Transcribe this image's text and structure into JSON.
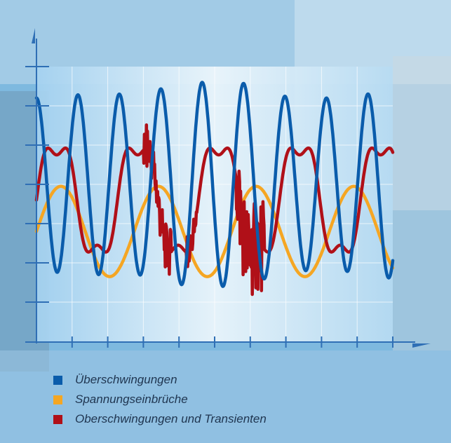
{
  "chart_data": {
    "type": "line",
    "title": "",
    "xlabel": "",
    "ylabel": "",
    "grid": true,
    "axis_ticks_x": 10,
    "axis_ticks_y": 7,
    "legend_position": "bottom-left",
    "xlim": [
      0,
      10
    ],
    "ylim": [
      0,
      7
    ],
    "series": [
      {
        "name": "Überschwingungen",
        "color": "#0a5cab",
        "kind": "sine",
        "offset": 4.0,
        "amplitude": [
          2.2,
          2.3,
          2.3,
          2.6,
          2.6,
          2.2,
          2.2,
          2.4
        ],
        "cycles": 8.6,
        "phase": 0.25
      },
      {
        "name": "Spannungseinbrüche",
        "color": "#f5a623",
        "kind": "sine",
        "offset": 2.8,
        "amplitude": 1.15,
        "cycles": 3.65,
        "phase": 0.0
      },
      {
        "name": "Oberschwingungen und Transienten",
        "color": "#b01018",
        "kind": "distorted",
        "offset": 3.6,
        "amplitude": 1.5,
        "cycles": 4.4,
        "phase": 0.0
      }
    ]
  },
  "colors": {
    "axis": "#2f6fb5",
    "plot_gradient_start": "#bfe1f6",
    "plot_gradient_end": "#e9f5fc"
  }
}
